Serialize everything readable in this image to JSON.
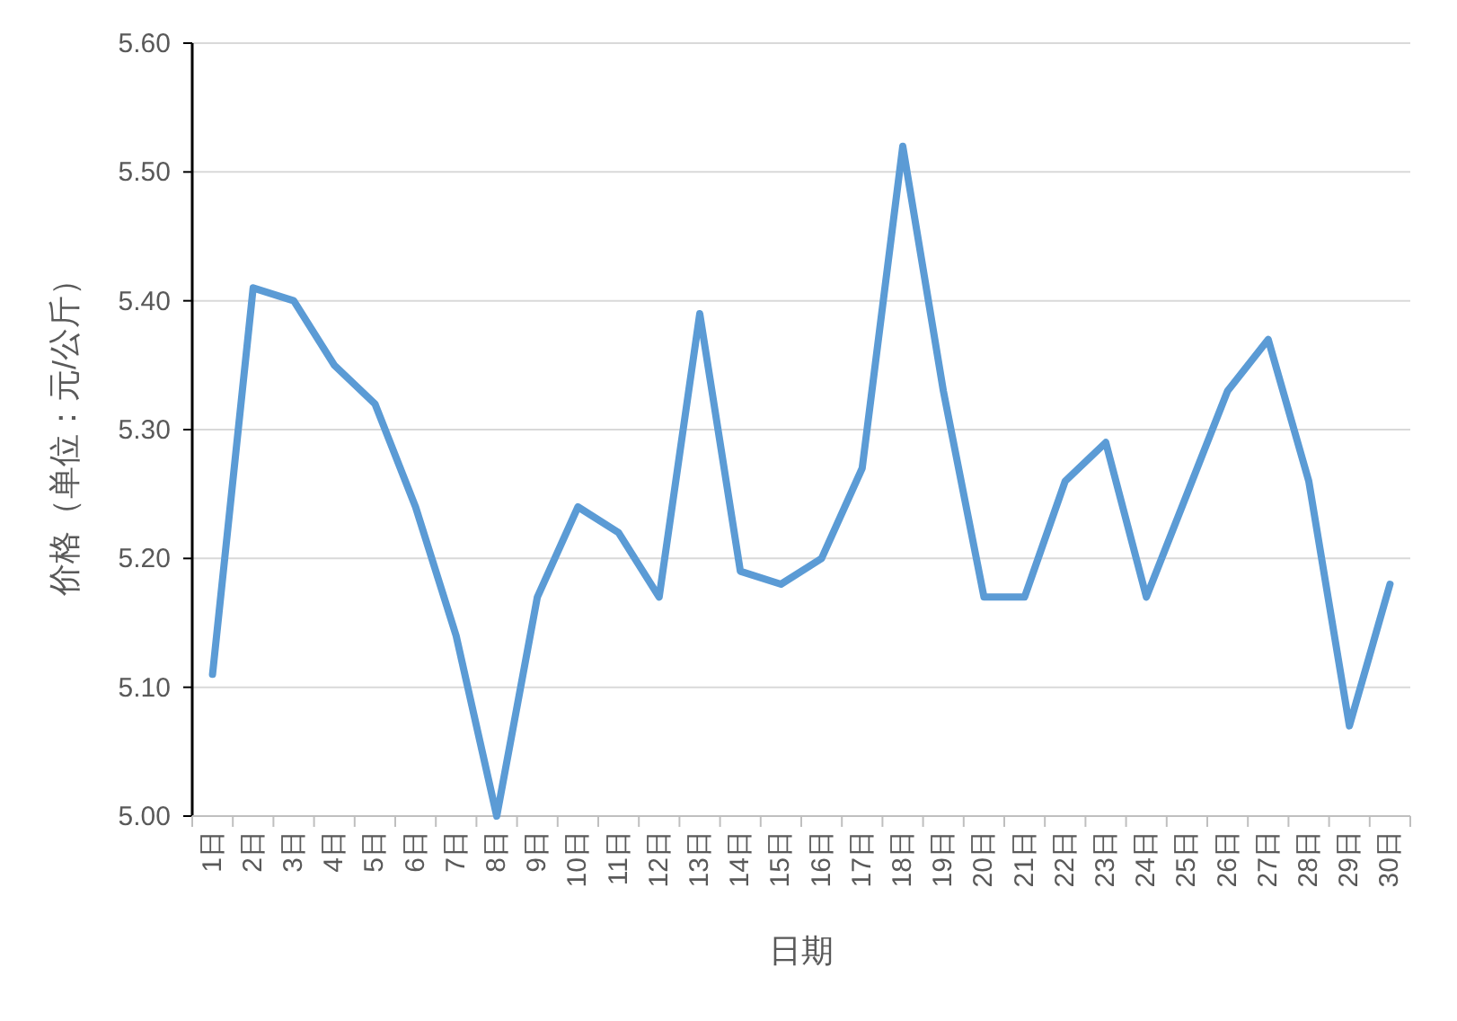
{
  "chart_data": {
    "type": "line",
    "xlabel": "日期",
    "ylabel": "价格（单位：元/公斤）",
    "categories": [
      "1日",
      "2日",
      "3日",
      "4日",
      "5日",
      "6日",
      "7日",
      "8日",
      "9日",
      "10日",
      "11日",
      "12日",
      "13日",
      "14日",
      "15日",
      "16日",
      "17日",
      "18日",
      "19日",
      "20日",
      "21日",
      "22日",
      "23日",
      "24日",
      "25日",
      "26日",
      "27日",
      "28日",
      "29日",
      "30日"
    ],
    "values": [
      5.11,
      5.41,
      5.4,
      5.35,
      5.32,
      5.24,
      5.14,
      5.0,
      5.17,
      5.24,
      5.22,
      5.17,
      5.39,
      5.19,
      5.18,
      5.2,
      5.27,
      5.52,
      5.33,
      5.17,
      5.17,
      5.26,
      5.29,
      5.17,
      5.25,
      5.33,
      5.37,
      5.26,
      5.07,
      5.18
    ],
    "color": "#5b9bd5",
    "ylim": [
      5.0,
      5.6
    ],
    "yticks": [
      {
        "value": 5.0,
        "label": "5.00"
      },
      {
        "value": 5.1,
        "label": "5.10"
      },
      {
        "value": 5.2,
        "label": "5.20"
      },
      {
        "value": 5.3,
        "label": "5.30"
      },
      {
        "value": 5.4,
        "label": "5.40"
      },
      {
        "value": 5.5,
        "label": "5.50"
      },
      {
        "value": 5.6,
        "label": "5.60"
      }
    ],
    "grid": "y"
  }
}
